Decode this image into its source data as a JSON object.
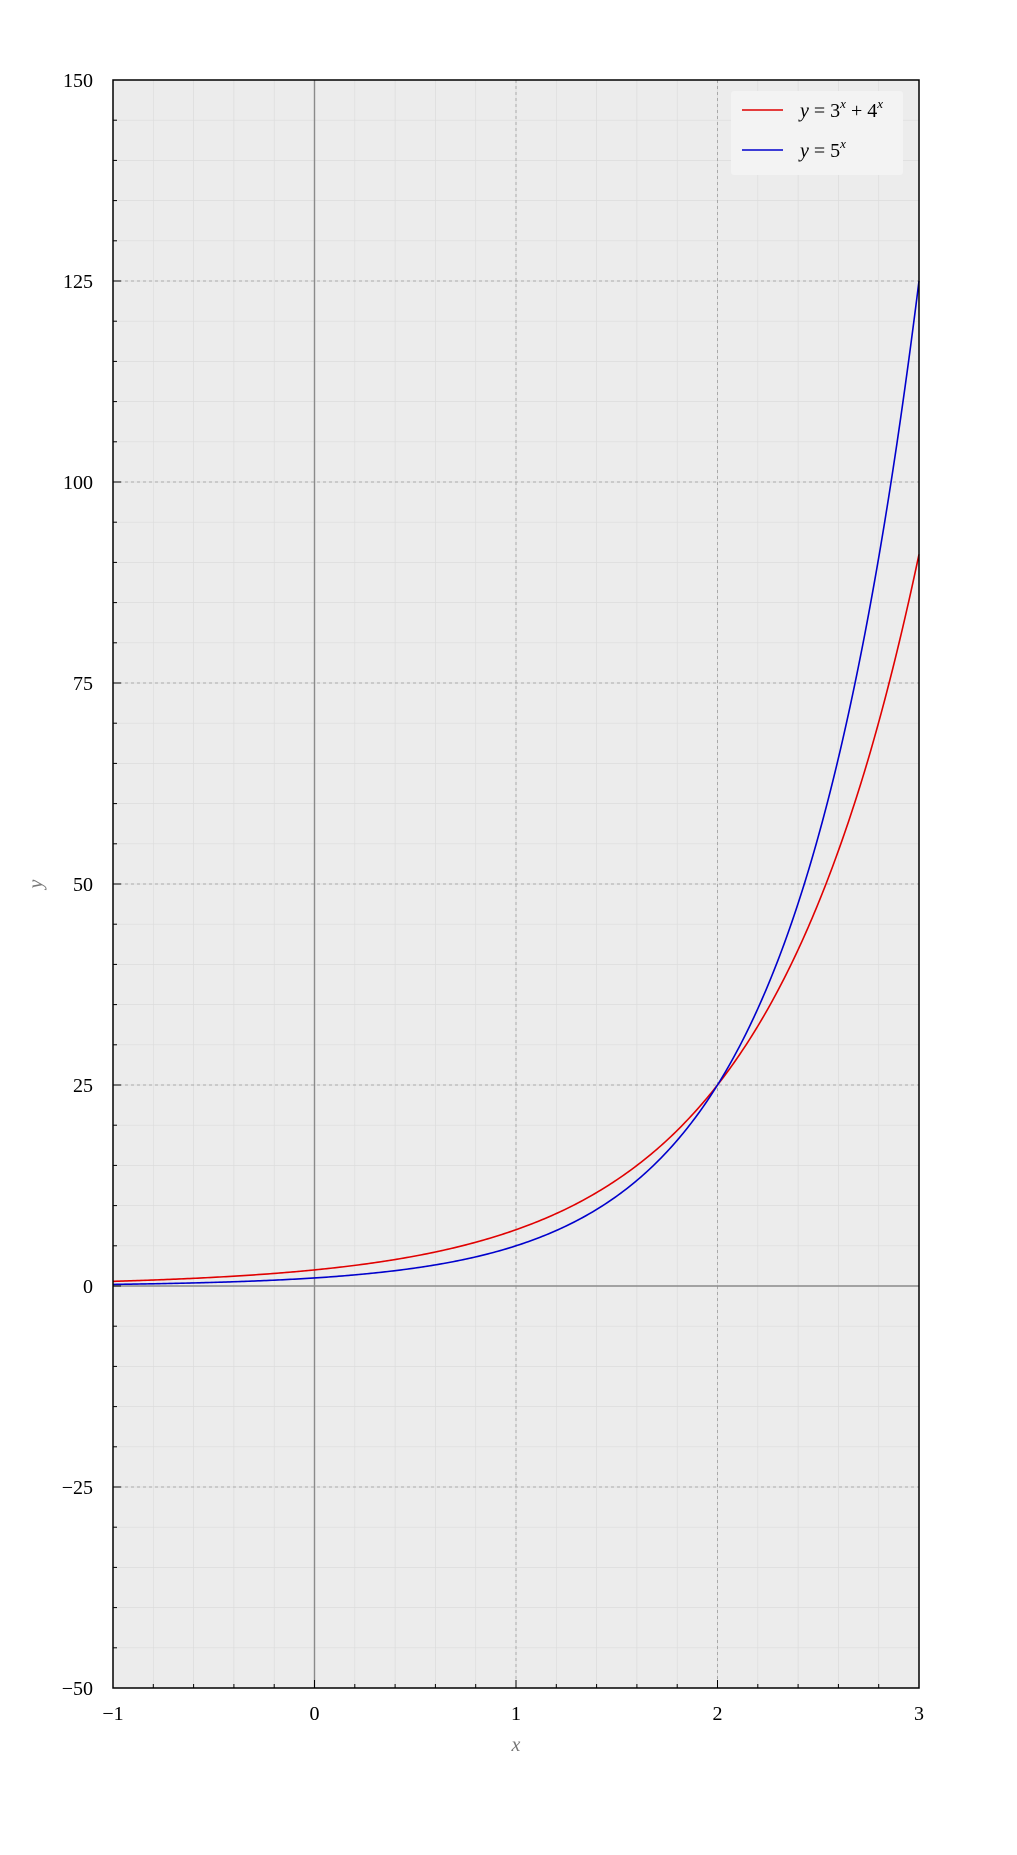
{
  "chart_data": {
    "type": "line",
    "xlabel": "x",
    "ylabel": "y",
    "xlim": [
      -1,
      3
    ],
    "ylim": [
      -50,
      150
    ],
    "xticks": [
      -1,
      0,
      1,
      2,
      3
    ],
    "xtick_labels": [
      "−1",
      "0",
      "1",
      "2",
      "3"
    ],
    "yticks": [
      -50,
      -25,
      0,
      25,
      50,
      75,
      100,
      125,
      150
    ],
    "ytick_labels": [
      "−50",
      "−25",
      "0",
      "25",
      "50",
      "75",
      "100",
      "125",
      "150"
    ],
    "grid": true,
    "legend_position": "top-right",
    "series": [
      {
        "name": "y = 3^x + 4^x",
        "color": "#e00000",
        "legend": {
          "var": "y",
          "eq": " = 3",
          "exp1": "x",
          "plus": " + 4",
          "exp2": "x"
        },
        "x": [
          -1,
          -0.5,
          0,
          0.25,
          0.5,
          0.75,
          1,
          1.25,
          1.5,
          1.75,
          2,
          2.25,
          2.5,
          2.75,
          3
        ],
        "y": [
          0.58,
          1.08,
          2,
          2.73,
          3.73,
          5.11,
          7,
          9.6,
          13.2,
          18.15,
          25,
          34.47,
          47.59,
          65.7,
          91
        ]
      },
      {
        "name": "y = 5^x",
        "color": "#0000cc",
        "legend": {
          "var": "y",
          "eq": " = 5",
          "exp1": "x"
        },
        "x": [
          -1,
          -0.5,
          0,
          0.25,
          0.5,
          0.75,
          1,
          1.25,
          1.5,
          1.75,
          2,
          2.25,
          2.5,
          2.75,
          3
        ],
        "y": [
          0.2,
          0.45,
          1,
          1.5,
          2.24,
          3.34,
          5,
          7.48,
          11.18,
          16.72,
          25,
          37.38,
          55.9,
          83.59,
          125
        ]
      }
    ]
  }
}
